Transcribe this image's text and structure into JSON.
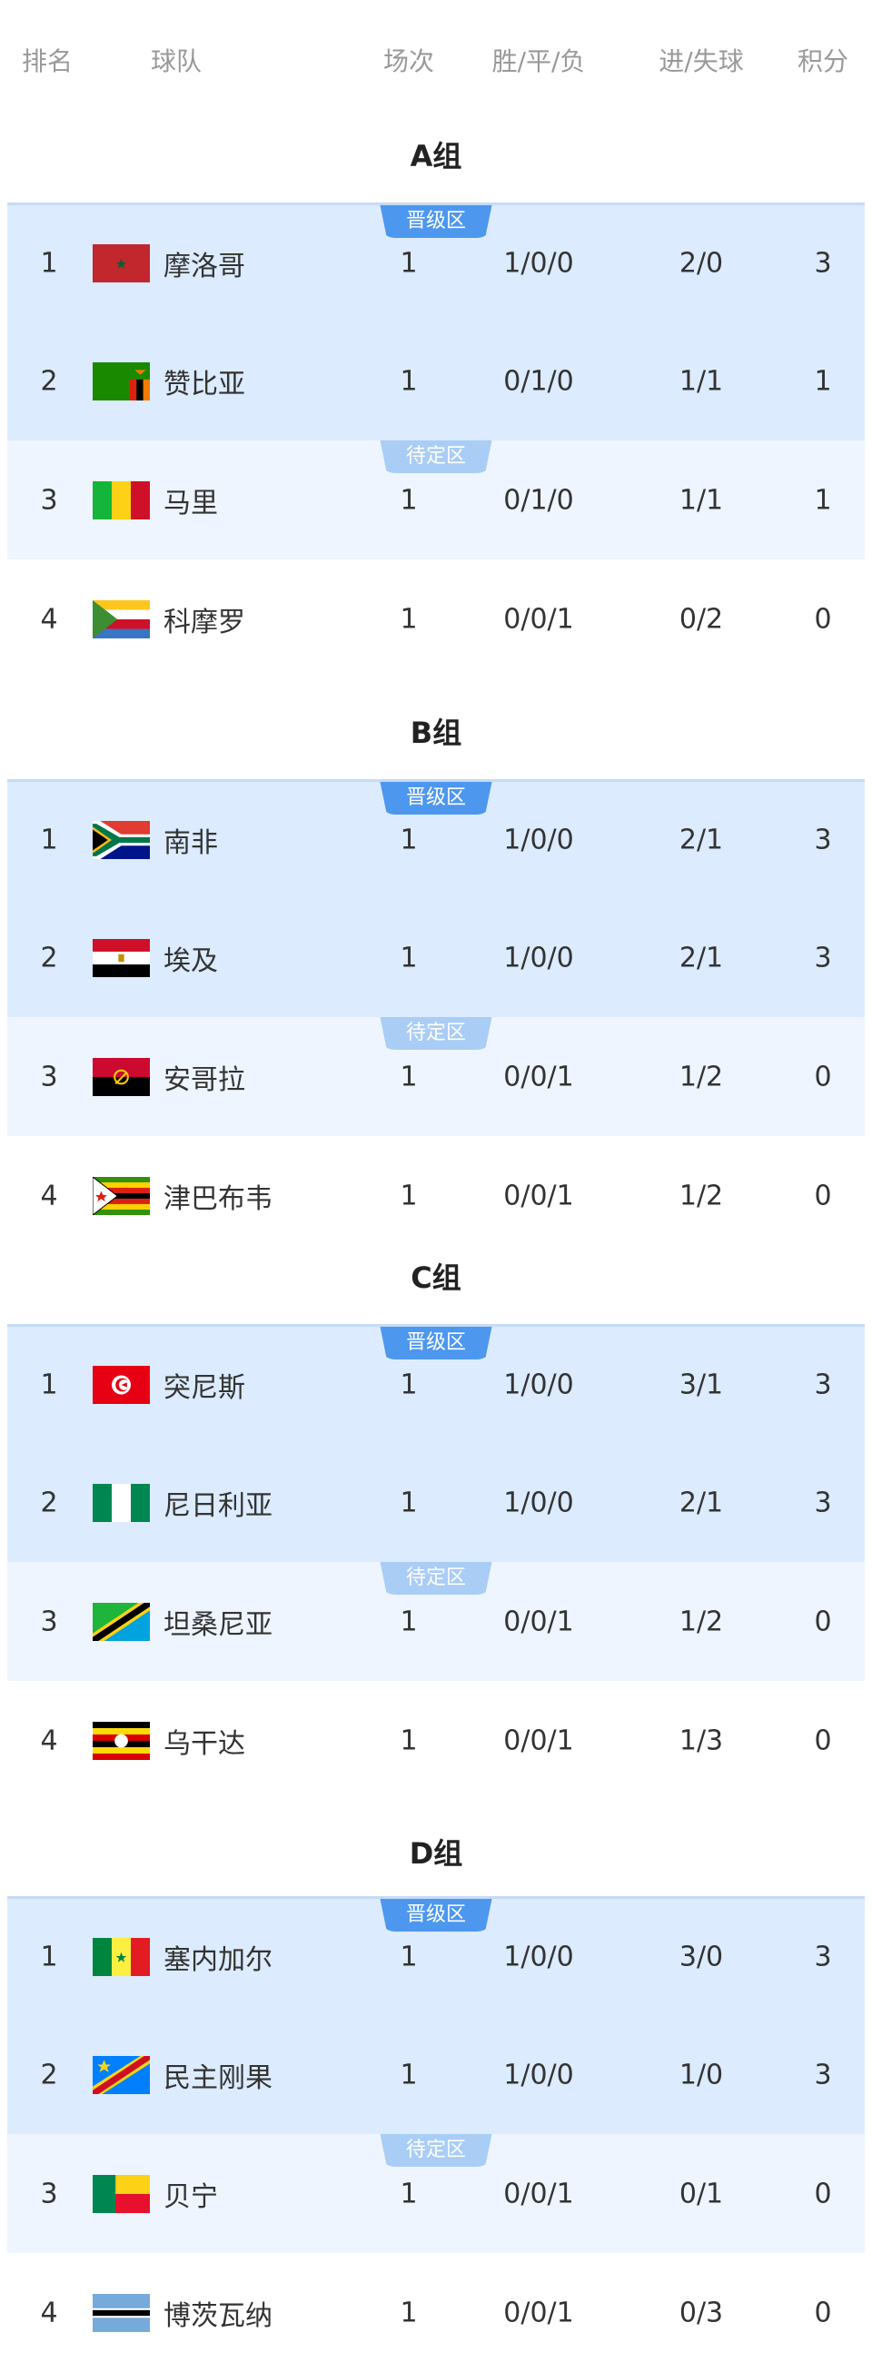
{
  "header": {
    "rank": "排名",
    "team": "球队",
    "played": "场次",
    "wdl": "胜/平/负",
    "goals": "进/失球",
    "points": "积分"
  },
  "zones": {
    "advance": "晋级区",
    "pending": "待定区"
  },
  "colors": {
    "advance_bg": "#dcebfd",
    "pending_bg": "#eef5fe",
    "advance_badge": "#4d97ef",
    "pending_badge": "#a9cdf5"
  },
  "groups": [
    {
      "title": "A组",
      "rows": [
        {
          "rank": "1",
          "flag": "morocco-flag",
          "team": "摩洛哥",
          "played": "1",
          "wdl": "1/0/0",
          "goals": "2/0",
          "points": "3"
        },
        {
          "rank": "2",
          "flag": "zambia-flag",
          "team": "赞比亚",
          "played": "1",
          "wdl": "0/1/0",
          "goals": "1/1",
          "points": "1"
        },
        {
          "rank": "3",
          "flag": "mali-flag",
          "team": "马里",
          "played": "1",
          "wdl": "0/1/0",
          "goals": "1/1",
          "points": "1"
        },
        {
          "rank": "4",
          "flag": "comoros-flag",
          "team": "科摩罗",
          "played": "1",
          "wdl": "0/0/1",
          "goals": "0/2",
          "points": "0"
        }
      ]
    },
    {
      "title": "B组",
      "rows": [
        {
          "rank": "1",
          "flag": "south-africa-flag",
          "team": "南非",
          "played": "1",
          "wdl": "1/0/0",
          "goals": "2/1",
          "points": "3"
        },
        {
          "rank": "2",
          "flag": "egypt-flag",
          "team": "埃及",
          "played": "1",
          "wdl": "1/0/0",
          "goals": "2/1",
          "points": "3"
        },
        {
          "rank": "3",
          "flag": "angola-flag",
          "team": "安哥拉",
          "played": "1",
          "wdl": "0/0/1",
          "goals": "1/2",
          "points": "0"
        },
        {
          "rank": "4",
          "flag": "zimbabwe-flag",
          "team": "津巴布韦",
          "played": "1",
          "wdl": "0/0/1",
          "goals": "1/2",
          "points": "0"
        }
      ]
    },
    {
      "title": "C组",
      "rows": [
        {
          "rank": "1",
          "flag": "tunisia-flag",
          "team": "突尼斯",
          "played": "1",
          "wdl": "1/0/0",
          "goals": "3/1",
          "points": "3"
        },
        {
          "rank": "2",
          "flag": "nigeria-flag",
          "team": "尼日利亚",
          "played": "1",
          "wdl": "1/0/0",
          "goals": "2/1",
          "points": "3"
        },
        {
          "rank": "3",
          "flag": "tanzania-flag",
          "team": "坦桑尼亚",
          "played": "1",
          "wdl": "0/0/1",
          "goals": "1/2",
          "points": "0"
        },
        {
          "rank": "4",
          "flag": "uganda-flag",
          "team": "乌干达",
          "played": "1",
          "wdl": "0/0/1",
          "goals": "1/3",
          "points": "0"
        }
      ]
    },
    {
      "title": "D组",
      "rows": [
        {
          "rank": "1",
          "flag": "senegal-flag",
          "team": "塞内加尔",
          "played": "1",
          "wdl": "1/0/0",
          "goals": "3/0",
          "points": "3"
        },
        {
          "rank": "2",
          "flag": "dr-congo-flag",
          "team": "民主刚果",
          "played": "1",
          "wdl": "1/0/0",
          "goals": "1/0",
          "points": "3"
        },
        {
          "rank": "3",
          "flag": "benin-flag",
          "team": "贝宁",
          "played": "1",
          "wdl": "0/0/1",
          "goals": "0/1",
          "points": "0"
        },
        {
          "rank": "4",
          "flag": "botswana-flag",
          "team": "博茨瓦纳",
          "played": "1",
          "wdl": "0/0/1",
          "goals": "0/3",
          "points": "0"
        }
      ]
    }
  ]
}
